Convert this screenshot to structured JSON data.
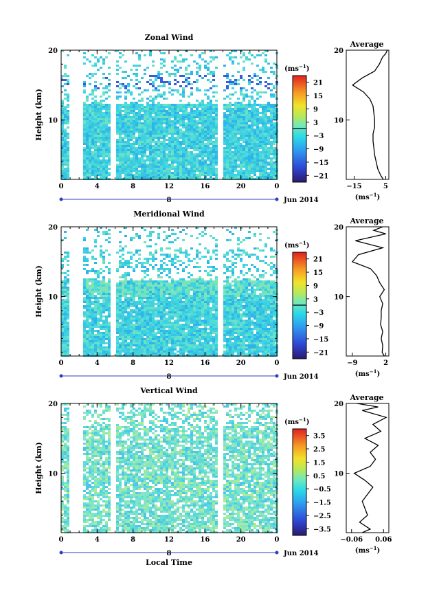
{
  "date_label": "Jun 2014",
  "xaxis_title": "Local Time",
  "chart_data": [
    {
      "type": "heatmap",
      "title": "Zonal Wind",
      "ylabel": "Height (km)",
      "xlabel": "",
      "xticks": [
        "0",
        "4",
        "8",
        "12",
        "16",
        "20",
        "0"
      ],
      "xlim": [
        0,
        24
      ],
      "ylim": [
        1.5,
        20
      ],
      "yticks": [
        10,
        20
      ],
      "day_label": "8",
      "colorbar": {
        "unit": "(ms",
        "unit_exp": "−1",
        "unit_close": ")",
        "ticks": [
          "21",
          "15",
          "9",
          "3",
          "−3",
          "−9",
          "−15",
          "−21"
        ],
        "range": [
          -24,
          24
        ]
      },
      "average": {
        "title": "Average",
        "xlabel": "(ms",
        "xlabel_exp": "−1",
        "xlabel_close": ")",
        "xticks": [
          "−15",
          "5"
        ],
        "xtick_values": [
          -15,
          5
        ],
        "xlim": [
          -20,
          7
        ],
        "yticks": [
          "10",
          "20"
        ],
        "profile": {
          "height": [
            1.5,
            2,
            3,
            4,
            5,
            6,
            7,
            8,
            9,
            10,
            11,
            12,
            13,
            14,
            15,
            16,
            17,
            18,
            19,
            19.5,
            20
          ],
          "value": [
            3.5,
            2,
            0,
            -1,
            -2,
            -2.5,
            -3,
            -3,
            -2,
            -2,
            -2.5,
            -3,
            -5,
            -9,
            -16,
            -10,
            -2,
            1,
            3,
            5,
            6
          ]
        }
      },
      "grid": false
    },
    {
      "type": "heatmap",
      "title": "Meridional Wind",
      "ylabel": "Height (km)",
      "xlabel": "",
      "xticks": [
        "0",
        "4",
        "8",
        "12",
        "16",
        "20",
        "0"
      ],
      "xlim": [
        0,
        24
      ],
      "ylim": [
        1.5,
        20
      ],
      "yticks": [
        10,
        20
      ],
      "day_label": "8",
      "colorbar": {
        "unit": "(ms",
        "unit_exp": "−1",
        "unit_close": ")",
        "ticks": [
          "21",
          "15",
          "9",
          "3",
          "−3",
          "−9",
          "−15",
          "−21"
        ],
        "range": [
          -24,
          24
        ]
      },
      "average": {
        "title": "Average",
        "xlabel": "(ms",
        "xlabel_exp": "−1",
        "xlabel_close": ")",
        "xticks": [
          "−9",
          "2"
        ],
        "xtick_values": [
          -9,
          2
        ],
        "xlim": [
          -11,
          3
        ],
        "yticks": [
          "10",
          "20"
        ],
        "profile": {
          "height": [
            1.5,
            2,
            3,
            4,
            5,
            6,
            7,
            8,
            9,
            10,
            11,
            12,
            13,
            14,
            15,
            16,
            17,
            18,
            19,
            19.5,
            20
          ],
          "value": [
            1.5,
            0.8,
            1,
            0.5,
            1,
            0.3,
            0.5,
            0.5,
            1,
            0,
            1.5,
            0,
            -1,
            -3,
            -9,
            -7,
            1,
            -8,
            2,
            -2,
            1
          ]
        }
      },
      "grid": false
    },
    {
      "type": "heatmap",
      "title": "Vertical Wind",
      "ylabel": "Height (km)",
      "xlabel": "Local Time",
      "xticks": [
        "0",
        "4",
        "8",
        "12",
        "16",
        "20",
        "0"
      ],
      "xlim": [
        0,
        24
      ],
      "ylim": [
        1.5,
        20
      ],
      "yticks": [
        10,
        20
      ],
      "day_label": "8",
      "colorbar": {
        "unit": "(ms",
        "unit_exp": "−1",
        "unit_close": ")",
        "ticks": [
          "3.5",
          "2.5",
          "1.5",
          "0.5",
          "−0.5",
          "−1.5",
          "−2.5",
          "−3.5"
        ],
        "range": [
          -4,
          4
        ]
      },
      "average": {
        "title": "Average",
        "xlabel": "(ms",
        "xlabel_exp": "−1",
        "xlabel_close": ")",
        "xticks": [
          "−0.06",
          "0.06"
        ],
        "xtick_values": [
          -0.06,
          0.06
        ],
        "xlim": [
          -0.08,
          0.08
        ],
        "yticks": [
          "10",
          "20"
        ],
        "profile": {
          "height": [
            1.5,
            2,
            3,
            4,
            5,
            6,
            7,
            8,
            9,
            10,
            11,
            12,
            13,
            14,
            15,
            16,
            17,
            18,
            19,
            19.5,
            20
          ],
          "value": [
            -0.02,
            0.01,
            -0.03,
            0,
            -0.01,
            -0.02,
            0,
            0.02,
            -0.01,
            -0.05,
            0.01,
            0.03,
            0.01,
            0.04,
            -0.01,
            0.05,
            0.02,
            0.07,
            -0.02,
            0.04,
            -0.04
          ]
        }
      },
      "grid": false
    }
  ]
}
